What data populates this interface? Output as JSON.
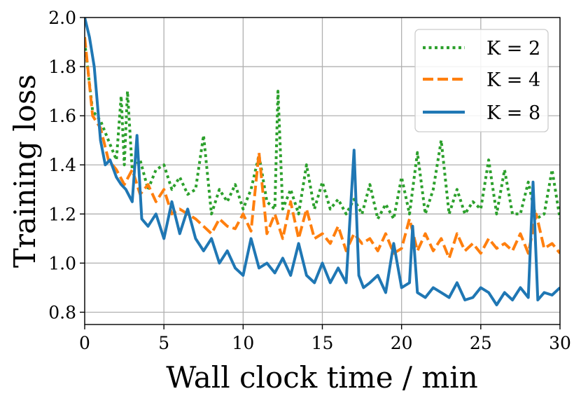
{
  "chart_data": {
    "type": "line",
    "xlabel": "Wall clock time / min",
    "ylabel": "Training loss",
    "xlim": [
      0,
      30
    ],
    "ylim": [
      0.75,
      2.0
    ],
    "xticks": [
      0,
      5,
      10,
      15,
      20,
      25,
      30
    ],
    "yticks": [
      0.8,
      1.0,
      1.2,
      1.4,
      1.6,
      1.8,
      2.0
    ],
    "xtick_labels": [
      "0",
      "5",
      "10",
      "15",
      "20",
      "25",
      "30"
    ],
    "ytick_labels": [
      "0.8",
      "1.0",
      "1.2",
      "1.4",
      "1.6",
      "1.8",
      "2.0"
    ],
    "grid": true,
    "legend_position": "top-right",
    "series": [
      {
        "name": "K = 2",
        "color": "#2ca02c",
        "style": "dotted",
        "x": [
          0,
          0.5,
          1.0,
          1.5,
          2.0,
          2.3,
          2.5,
          2.7,
          3.0,
          3.5,
          4.0,
          4.5,
          5.0,
          5.5,
          6.0,
          6.5,
          7.0,
          7.5,
          8.0,
          8.5,
          9.0,
          9.5,
          10.0,
          10.5,
          11.0,
          11.5,
          12.0,
          12.2,
          12.5,
          13.0,
          13.5,
          14.0,
          14.5,
          15.0,
          15.5,
          16.0,
          16.5,
          17.0,
          17.5,
          18.0,
          18.5,
          19.0,
          19.5,
          20.0,
          20.5,
          21.0,
          21.5,
          22.0,
          22.5,
          23.0,
          23.5,
          24.0,
          24.5,
          25.0,
          25.5,
          26.0,
          26.5,
          27.0,
          27.5,
          28.0,
          28.5,
          29.0,
          29.5,
          30.0
        ],
        "y": [
          1.9,
          1.62,
          1.58,
          1.5,
          1.42,
          1.68,
          1.4,
          1.7,
          1.38,
          1.42,
          1.3,
          1.38,
          1.4,
          1.3,
          1.35,
          1.28,
          1.3,
          1.52,
          1.2,
          1.3,
          1.25,
          1.32,
          1.22,
          1.3,
          1.44,
          1.25,
          1.22,
          1.7,
          1.22,
          1.3,
          1.2,
          1.4,
          1.22,
          1.33,
          1.22,
          1.26,
          1.2,
          1.26,
          1.2,
          1.32,
          1.18,
          1.24,
          1.18,
          1.35,
          1.2,
          1.45,
          1.2,
          1.3,
          1.5,
          1.2,
          1.3,
          1.2,
          1.25,
          1.22,
          1.42,
          1.2,
          1.38,
          1.2,
          1.2,
          1.33,
          1.18,
          1.2,
          1.38,
          1.18
        ]
      },
      {
        "name": "K = 4",
        "color": "#ff7f0e",
        "style": "dashed",
        "x": [
          0,
          0.5,
          1.0,
          1.5,
          2.0,
          2.5,
          3.0,
          3.5,
          4.0,
          4.5,
          5.0,
          5.5,
          6.0,
          6.5,
          7.0,
          7.5,
          8.0,
          8.5,
          9.0,
          9.5,
          10.0,
          10.5,
          11.0,
          11.5,
          12.0,
          12.5,
          13.0,
          13.5,
          14.0,
          14.5,
          15.0,
          15.5,
          16.0,
          16.5,
          17.0,
          17.5,
          18.0,
          18.5,
          19.0,
          19.5,
          20.0,
          20.5,
          21.0,
          21.5,
          22.0,
          22.5,
          23.0,
          23.5,
          24.0,
          24.5,
          25.0,
          25.5,
          26.0,
          26.5,
          27.0,
          27.5,
          28.0,
          28.5,
          29.0,
          29.5,
          30.0
        ],
        "y": [
          1.92,
          1.6,
          1.55,
          1.42,
          1.38,
          1.32,
          1.38,
          1.28,
          1.32,
          1.25,
          1.3,
          1.2,
          1.22,
          1.2,
          1.18,
          1.15,
          1.12,
          1.18,
          1.15,
          1.14,
          1.2,
          1.13,
          1.45,
          1.12,
          1.2,
          1.1,
          1.25,
          1.1,
          1.22,
          1.1,
          1.12,
          1.08,
          1.15,
          1.05,
          1.12,
          1.08,
          1.1,
          1.05,
          1.12,
          1.04,
          1.06,
          1.18,
          1.05,
          1.12,
          1.05,
          1.1,
          1.02,
          1.12,
          1.05,
          1.08,
          1.04,
          1.1,
          1.06,
          1.08,
          1.05,
          1.12,
          1.04,
          1.2,
          1.06,
          1.08,
          1.04
        ]
      },
      {
        "name": "K = 8",
        "color": "#1f77b4",
        "style": "solid",
        "x": [
          0,
          0.3,
          0.6,
          1.0,
          1.3,
          1.6,
          2.0,
          2.3,
          2.6,
          3.0,
          3.3,
          3.6,
          4.0,
          4.5,
          5.0,
          5.5,
          6.0,
          6.5,
          7.0,
          7.5,
          8.0,
          8.5,
          9.0,
          9.5,
          10.0,
          10.5,
          11.0,
          11.5,
          12.0,
          12.5,
          13.0,
          13.5,
          14.0,
          14.5,
          15.0,
          15.5,
          16.0,
          16.5,
          17.0,
          17.3,
          17.6,
          18.0,
          18.5,
          19.0,
          19.5,
          20.0,
          20.5,
          20.7,
          21.0,
          21.5,
          22.0,
          22.5,
          23.0,
          23.5,
          24.0,
          24.5,
          25.0,
          25.5,
          26.0,
          26.5,
          27.0,
          27.5,
          28.0,
          28.3,
          28.6,
          29.0,
          29.5,
          30.0
        ],
        "y": [
          2.0,
          1.92,
          1.8,
          1.5,
          1.4,
          1.42,
          1.35,
          1.32,
          1.3,
          1.25,
          1.52,
          1.18,
          1.15,
          1.2,
          1.1,
          1.25,
          1.12,
          1.22,
          1.1,
          1.05,
          1.1,
          1.0,
          1.05,
          0.98,
          0.95,
          1.1,
          0.98,
          1.0,
          0.96,
          1.02,
          0.95,
          1.08,
          0.95,
          0.92,
          1.0,
          0.92,
          0.98,
          0.92,
          1.46,
          0.95,
          0.9,
          0.92,
          0.95,
          0.88,
          1.08,
          0.9,
          0.92,
          1.15,
          0.88,
          0.86,
          0.9,
          0.88,
          0.86,
          0.92,
          0.85,
          0.86,
          0.9,
          0.88,
          0.83,
          0.88,
          0.85,
          0.9,
          0.86,
          1.33,
          0.85,
          0.88,
          0.87,
          0.9
        ]
      }
    ]
  }
}
